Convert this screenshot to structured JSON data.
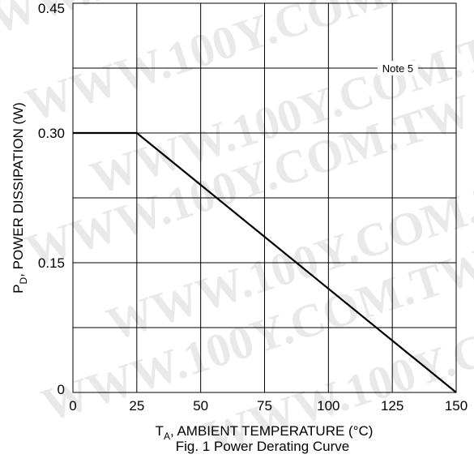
{
  "chart_data": {
    "type": "line",
    "title": "",
    "caption": "Fig. 1  Power Derating Curve",
    "xlabel_main": "T",
    "xlabel_sub": "A",
    "xlabel_rest": ", AMBIENT TEMPERATURE (°C)",
    "ylabel_main": "P",
    "ylabel_sub": "D",
    "ylabel_rest": ", POWER DISSIPATION (W)",
    "xlim": [
      0,
      150
    ],
    "ylim": [
      0,
      0.45
    ],
    "x_grid": [
      0,
      25,
      50,
      75,
      100,
      125,
      150
    ],
    "y_grid": [
      0,
      0.075,
      0.15,
      0.225,
      0.3,
      0.375,
      0.45
    ],
    "x_ticks": [
      {
        "value": 0,
        "label": "0"
      },
      {
        "value": 25,
        "label": "25"
      },
      {
        "value": 50,
        "label": "50"
      },
      {
        "value": 75,
        "label": "75"
      },
      {
        "value": 100,
        "label": "100"
      },
      {
        "value": 125,
        "label": "125"
      },
      {
        "value": 150,
        "label": "150"
      }
    ],
    "y_ticks": [
      {
        "value": 0,
        "label": "0"
      },
      {
        "value": 0.15,
        "label": "0.15"
      },
      {
        "value": 0.3,
        "label": "0.30"
      },
      {
        "value": 0.45,
        "label": "0.45"
      }
    ],
    "grid": true,
    "series": [
      {
        "x": [
          0,
          25,
          150
        ],
        "y": [
          0.3,
          0.3,
          0
        ]
      }
    ],
    "annotation": {
      "text": "Note 5",
      "x": 130,
      "y": 0.375
    },
    "watermark": "WWW.100Y.COM.TW"
  }
}
